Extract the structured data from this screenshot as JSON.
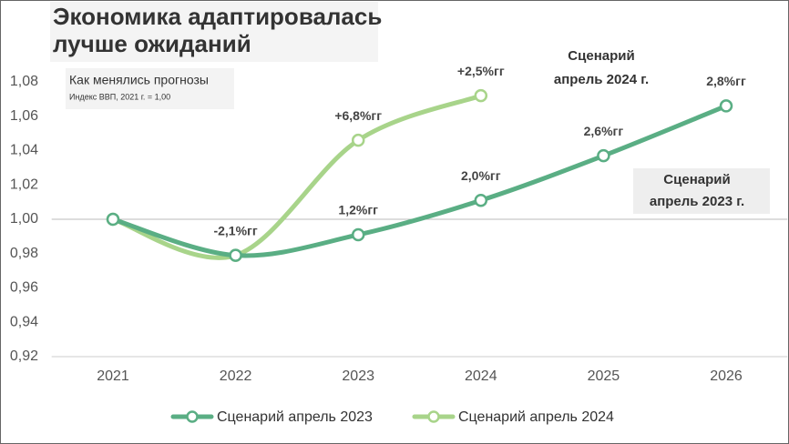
{
  "chart_data": {
    "type": "line",
    "title": [
      "Экономика адаптировалась",
      "лучше ожиданий"
    ],
    "subtitle": "Как менялись прогнозы",
    "note": "Индекс ВВП, 2021 г. = 1,00",
    "categories": [
      "2021",
      "2022",
      "2023",
      "2024",
      "2025",
      "2026"
    ],
    "series": [
      {
        "name": "Сценарий апрель 2023",
        "color": "#5aae84",
        "values": [
          1.0,
          0.979,
          0.991,
          1.011,
          1.037,
          1.066
        ],
        "point_labels": [
          null,
          "-2,1%гг",
          "1,2%гг",
          "2,0%гг",
          "2,6%гг",
          "2,8%гг"
        ],
        "scenario_label": [
          "Сценарий",
          "апрель 2023 г."
        ]
      },
      {
        "name": "Сценарий апрель 2024",
        "color": "#a8d48a",
        "values": [
          1.0,
          0.979,
          1.046,
          1.072,
          null,
          null
        ],
        "point_labels": [
          null,
          null,
          "+6,8%гг",
          "+2,5%гг",
          null,
          null
        ],
        "scenario_label": [
          "Сценарий",
          "апрель 2024 г."
        ]
      }
    ],
    "ylim": [
      0.92,
      1.08
    ],
    "yticks": [
      {
        "value": 0.92,
        "label": "0,92"
      },
      {
        "value": 0.94,
        "label": "0,94"
      },
      {
        "value": 0.96,
        "label": "0,96"
      },
      {
        "value": 0.98,
        "label": "0,98"
      },
      {
        "value": 1.0,
        "label": "1,00"
      },
      {
        "value": 1.02,
        "label": "1,02"
      },
      {
        "value": 1.04,
        "label": "1,04"
      },
      {
        "value": 1.06,
        "label": "1,06"
      },
      {
        "value": 1.08,
        "label": "1,08"
      }
    ],
    "reference_line": 1.0,
    "grid": false,
    "legend": "bottom"
  }
}
